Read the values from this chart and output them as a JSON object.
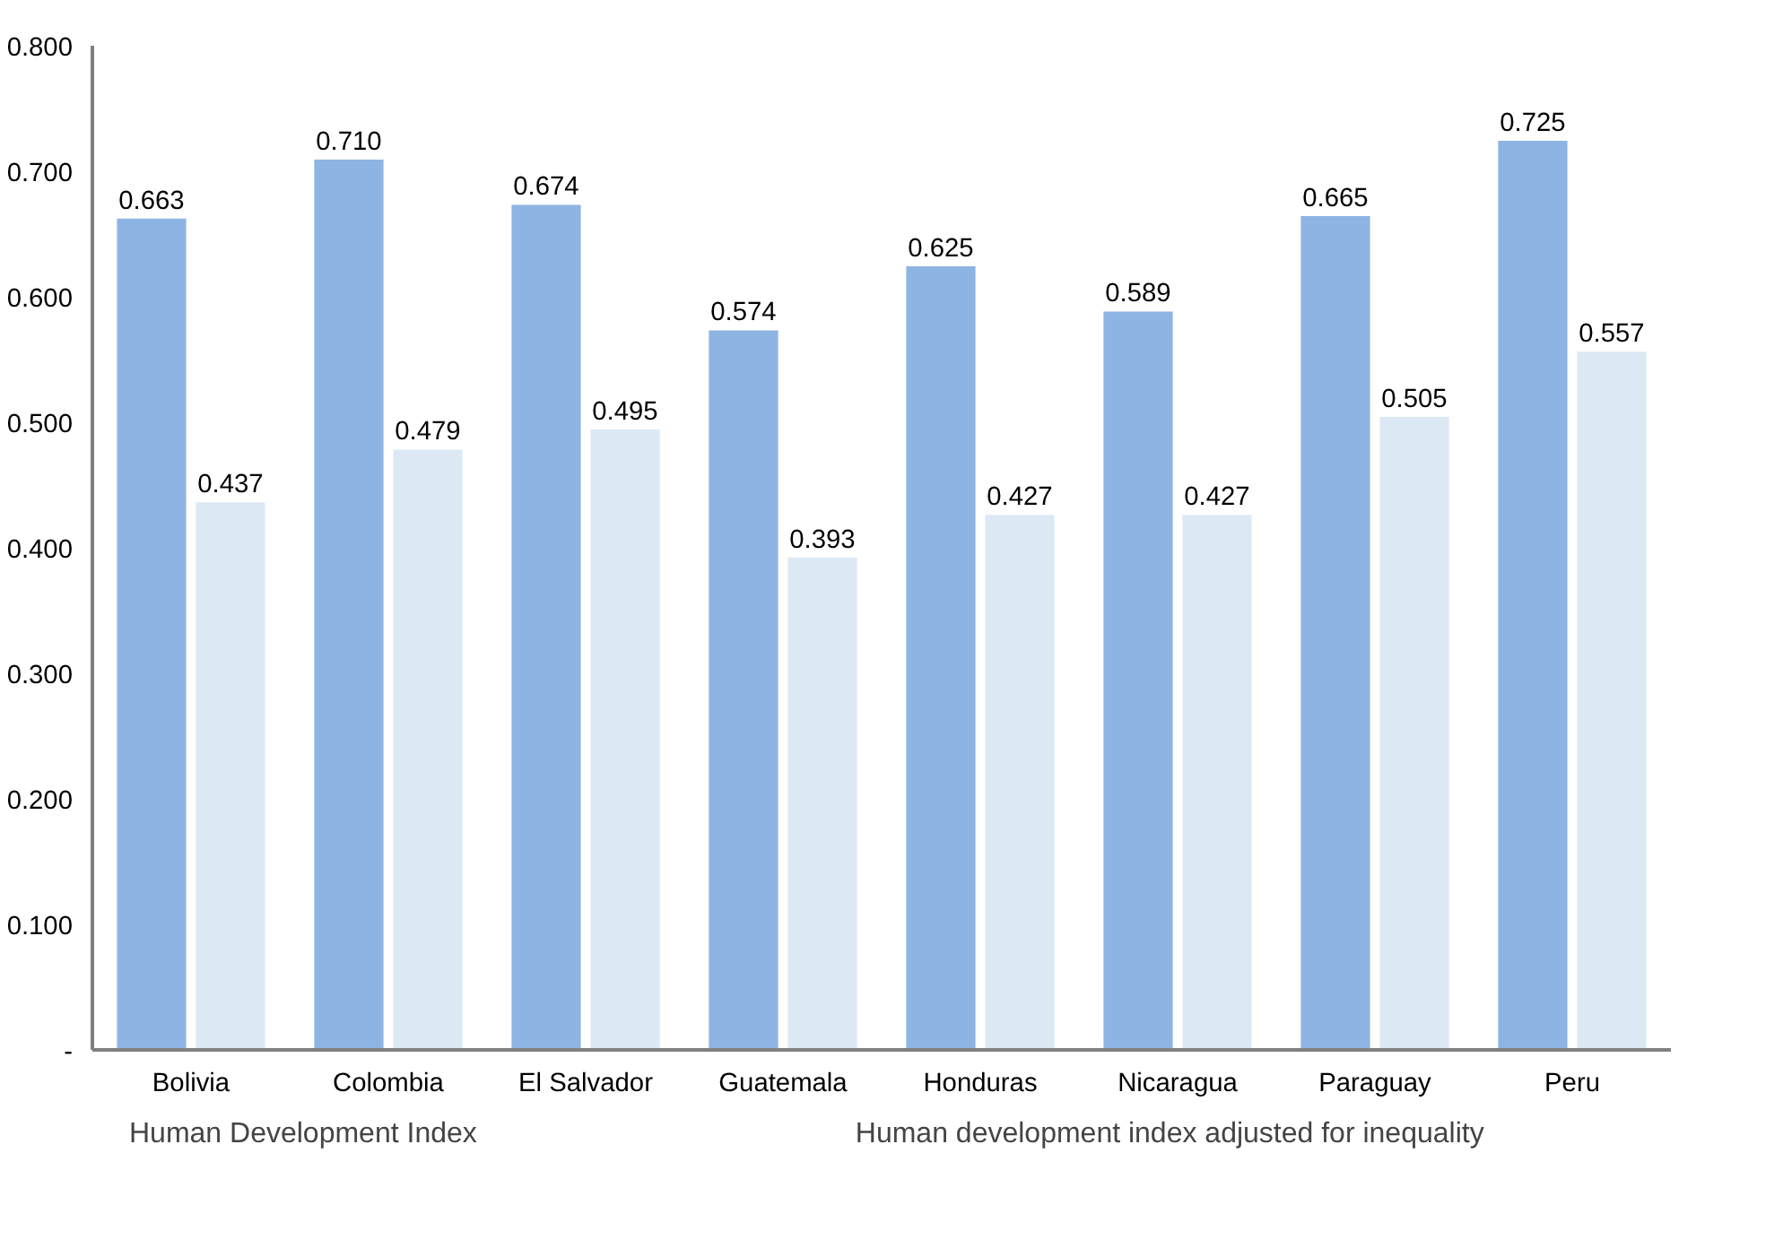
{
  "chart_data": {
    "type": "bar",
    "categories": [
      "Bolivia",
      "Colombia",
      "El Salvador",
      "Guatemala",
      "Honduras",
      "Nicaragua",
      "Paraguay",
      "Peru"
    ],
    "series": [
      {
        "name": "Human Development Index",
        "color": "#8eb4e3",
        "values": [
          0.663,
          0.71,
          0.674,
          0.574,
          0.625,
          0.589,
          0.665,
          0.725
        ],
        "value_labels": [
          "0.663",
          "0.710",
          "0.674",
          "0.574",
          "0.625",
          "0.589",
          "0.665",
          "0.725"
        ]
      },
      {
        "name": "Human development index adjusted for inequality",
        "color": "#dce9f5",
        "values": [
          0.437,
          0.479,
          0.495,
          0.393,
          0.427,
          0.427,
          0.505,
          0.557
        ],
        "value_labels": [
          "0.437",
          "0.479",
          "0.495",
          "0.393",
          "0.427",
          "0.427",
          "0.505",
          "0.557"
        ]
      }
    ],
    "ylim": [
      0,
      0.8
    ],
    "yticks": [
      {
        "value": 0,
        "label": "-"
      },
      {
        "value": 0.1,
        "label": "0.100"
      },
      {
        "value": 0.2,
        "label": "0.200"
      },
      {
        "value": 0.3,
        "label": "0.300"
      },
      {
        "value": 0.4,
        "label": "0.400"
      },
      {
        "value": 0.5,
        "label": "0.500"
      },
      {
        "value": 0.6,
        "label": "0.600"
      },
      {
        "value": 0.7,
        "label": "0.700"
      },
      {
        "value": 0.8,
        "label": "0.800"
      }
    ],
    "grid": false,
    "legend": "bottom"
  }
}
